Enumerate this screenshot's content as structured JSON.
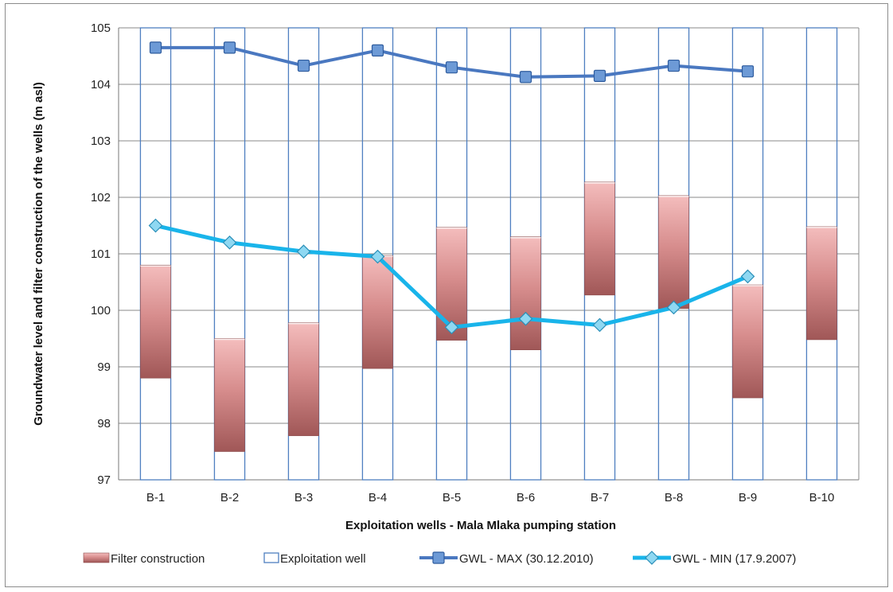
{
  "chart_data": {
    "type": "bar",
    "categories": [
      "B-1",
      "B-2",
      "B-3",
      "B-4",
      "B-5",
      "B-6",
      "B-7",
      "B-8",
      "B-9",
      "B-10"
    ],
    "xlabel": "Exploitation wells - Mala Mlaka pumping station",
    "ylabel": "Groundwater level and filter construction of the wells (m asl)",
    "ylim": [
      97,
      105
    ],
    "yticks": [
      "97",
      "98",
      "99",
      "100",
      "101",
      "102",
      "103",
      "104",
      "105"
    ],
    "grid": true,
    "legend_position": "bottom",
    "colors": {
      "filter_fill_light": "#f2b6b6",
      "filter_fill_dark": "#a05757",
      "well_outline": "#4f7fc0",
      "gwl_max": "#4a78c0",
      "gwl_max_marker": "#6d9ad6",
      "gwl_min": "#19b4ea",
      "gwl_min_marker": "#8fd8f2",
      "grid": "#888888"
    },
    "series": [
      {
        "name": "Filter construction",
        "kind": "floating-bar",
        "bottom": [
          98.8,
          97.5,
          97.78,
          98.97,
          99.47,
          99.3,
          100.27,
          100.03,
          98.45,
          99.48
        ],
        "top": [
          100.8,
          99.5,
          99.78,
          100.97,
          101.47,
          101.3,
          102.27,
          102.03,
          100.45,
          101.48
        ]
      },
      {
        "name": "Exploitation well",
        "kind": "outline-bar"
      },
      {
        "name": "GWL - MAX (30.12.2010)",
        "kind": "line",
        "marker": "square",
        "values": [
          104.65,
          104.65,
          104.33,
          104.6,
          104.3,
          104.13,
          104.15,
          104.33,
          104.23,
          null
        ]
      },
      {
        "name": "GWL - MIN (17.9.2007)",
        "kind": "line",
        "marker": "diamond",
        "values": [
          101.5,
          101.2,
          101.04,
          100.95,
          99.7,
          99.85,
          99.74,
          100.05,
          100.6,
          null
        ]
      }
    ]
  }
}
